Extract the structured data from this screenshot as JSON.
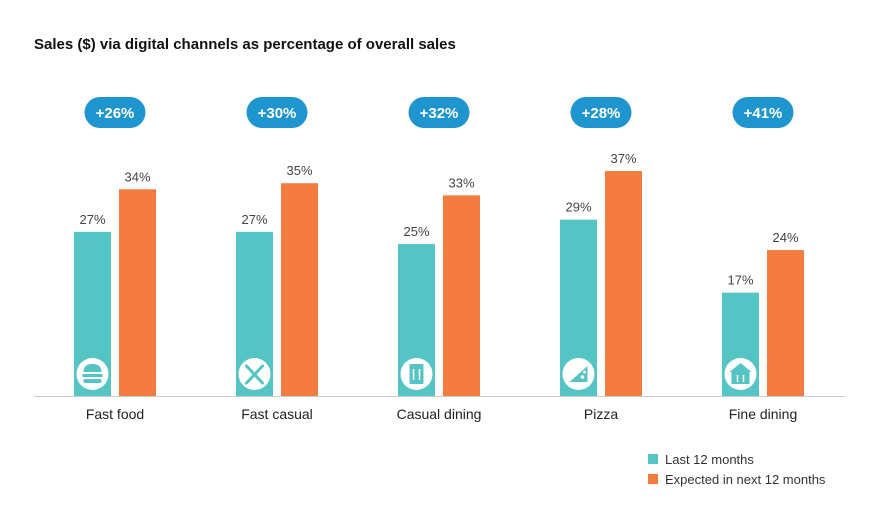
{
  "title": "Sales ($) via digital channels as percentage of overall sales",
  "colors": {
    "last": "#55c4c4",
    "next": "#f47c40",
    "badge": "#1f95d0",
    "badge_text": "#ffffff",
    "value_label": "#444444",
    "category_label": "#222222",
    "baseline": "#cccccc"
  },
  "chart_data": {
    "type": "bar",
    "title": "Sales ($) via digital channels as percentage of overall sales",
    "categories": [
      "Fast food",
      "Fast casual",
      "Casual dining",
      "Pizza",
      "Fine dining"
    ],
    "series": [
      {
        "name": "Last 12 months",
        "values": [
          27,
          27,
          25,
          29,
          17
        ]
      },
      {
        "name": "Expected in next 12 months",
        "values": [
          34,
          35,
          33,
          37,
          24
        ]
      }
    ],
    "growth_badges": [
      "+26%",
      "+30%",
      "+32%",
      "+28%",
      "+41%"
    ],
    "category_icons": [
      "burger-icon",
      "fork-knife-icon",
      "menu-icon",
      "pizza-icon",
      "restaurant-icon"
    ],
    "value_suffix": "%",
    "ylim": [
      0,
      40
    ],
    "grid": false,
    "legend_position": "bottom-right"
  },
  "legend": {
    "items": [
      {
        "label": "Last 12 months",
        "color": "#55c4c4"
      },
      {
        "label": "Expected in next 12 months",
        "color": "#f47c40"
      }
    ]
  }
}
